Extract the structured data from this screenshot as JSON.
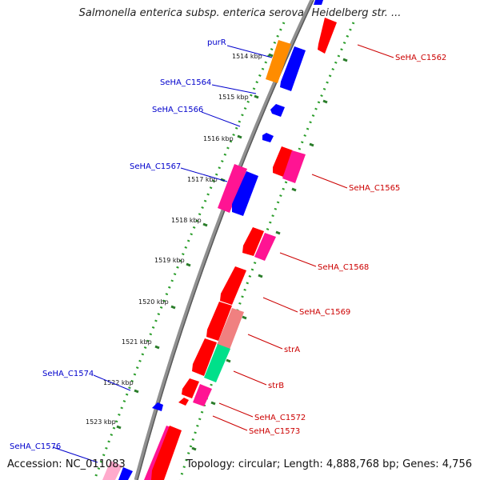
{
  "title": "Salmonella enterica subsp. enterica serovar Heidelberg str. ...",
  "footer": {
    "accession": "Accession: NC_011083",
    "topology": "Topology: circular; Length: 4,888,768 bp; Genes: 4,756"
  },
  "colors": {
    "backbone": "#8c8c8c",
    "dots": "#2a9d2a",
    "ticks": "#2a7d2a",
    "label_reverse": "#0000cc",
    "label_forward": "#cc0000",
    "gene_red": "#ff0000",
    "gene_blue": "#0000ff",
    "gene_pink": "#ff1493",
    "gene_orange": "#ff8c00",
    "gene_lightred": "#f08080",
    "gene_green": "#00e08a"
  },
  "tick_labels": [
    "1514 kbp",
    "1515 kbp",
    "1516 kbp",
    "1517 kbp",
    "1518 kbp",
    "1519 kbp",
    "1520 kbp",
    "1521 kbp",
    "1522 kbp",
    "1523 kbp"
  ],
  "left_labels": [
    "purR",
    "SeHA_C1564",
    "SeHA_C1566",
    "SeHA_C1567",
    "SeHA_C1574",
    "SeHA_C1576"
  ],
  "right_labels": [
    "SeHA_C1562",
    "SeHA_C1565",
    "SeHA_C1568",
    "SeHA_C1569",
    "strA",
    "strB",
    "SeHA_C1572",
    "SeHA_C1573"
  ]
}
